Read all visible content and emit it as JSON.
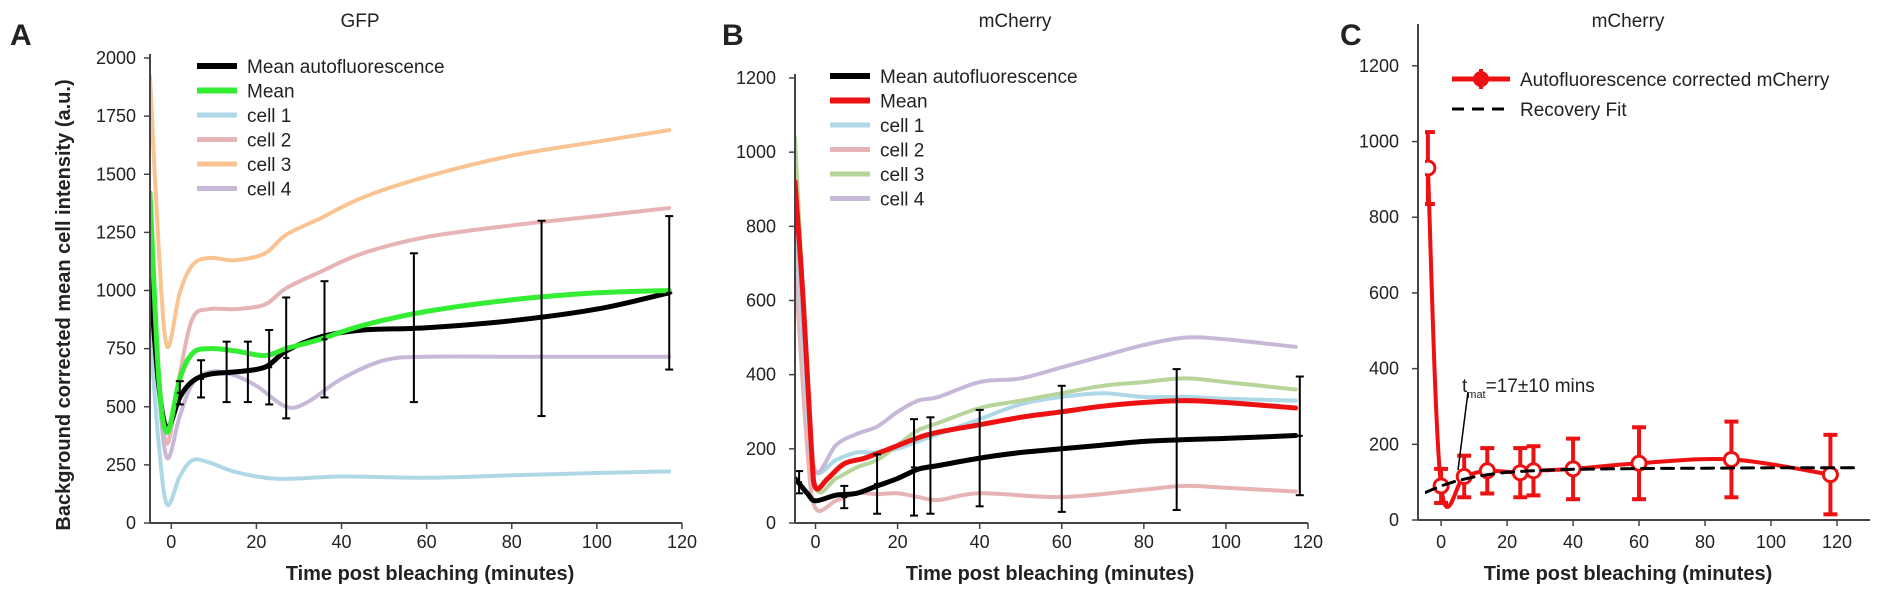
{
  "chart_data": [
    {
      "panel": "A",
      "type": "line",
      "title": "GFP",
      "xlabel": "Time post bleaching (minutes)",
      "ylabel": "Background corrected mean cell intensity (a.u.)",
      "xlim": [
        -5,
        120
      ],
      "ylim": [
        0,
        2000
      ],
      "xticks": [
        0,
        20,
        40,
        60,
        80,
        100,
        120
      ],
      "yticks": [
        0,
        250,
        500,
        750,
        1000,
        1250,
        1500,
        1750,
        2000
      ],
      "legend_position": "top-left",
      "series": [
        {
          "name": "cell 1",
          "color": "#aed8e6",
          "width": 4,
          "x": [
            -5,
            -3,
            -1,
            2,
            5,
            9,
            15,
            25,
            40,
            60,
            80,
            100,
            117
          ],
          "y": [
            820,
            350,
            80,
            200,
            270,
            260,
            220,
            190,
            200,
            195,
            205,
            215,
            222
          ]
        },
        {
          "name": "cell 2",
          "color": "#e6b4b4",
          "width": 4,
          "x": [
            -5,
            -3,
            -1,
            2,
            5,
            9,
            15,
            22,
            27,
            35,
            45,
            60,
            80,
            100,
            117
          ],
          "y": [
            1100,
            650,
            340,
            640,
            880,
            920,
            920,
            940,
            1010,
            1080,
            1160,
            1230,
            1280,
            1320,
            1355
          ]
        },
        {
          "name": "cell 3",
          "color": "#f9c392",
          "width": 4,
          "x": [
            -5,
            -3,
            -1,
            2,
            5,
            9,
            15,
            22,
            27,
            35,
            45,
            60,
            80,
            100,
            117
          ],
          "y": [
            1920,
            1200,
            760,
            990,
            1110,
            1140,
            1130,
            1160,
            1240,
            1310,
            1400,
            1490,
            1580,
            1640,
            1690
          ]
        },
        {
          "name": "cell 4",
          "color": "#c7b8d8",
          "width": 4,
          "x": [
            -5,
            -3,
            -1,
            2,
            5,
            9,
            14,
            20,
            27,
            32,
            40,
            50,
            60,
            80,
            100,
            117
          ],
          "y": [
            1220,
            600,
            280,
            460,
            600,
            650,
            640,
            590,
            500,
            520,
            620,
            700,
            715,
            715,
            715,
            715
          ]
        },
        {
          "name": "Mean autofluorescence",
          "color": "#000000",
          "width": 5,
          "x": [
            -5,
            -3,
            -1,
            2,
            5,
            9,
            15,
            22,
            27,
            35,
            45,
            60,
            80,
            100,
            117
          ],
          "y": [
            1050,
            600,
            410,
            540,
            610,
            640,
            650,
            670,
            740,
            800,
            830,
            840,
            870,
            920,
            990
          ]
        },
        {
          "name": "Mean",
          "color": "#33ee33",
          "width": 5,
          "x": [
            -5,
            -3,
            -1,
            2,
            5,
            9,
            15,
            22,
            27,
            35,
            45,
            60,
            80,
            100,
            117
          ],
          "y": [
            1420,
            640,
            390,
            620,
            730,
            750,
            740,
            720,
            750,
            790,
            850,
            910,
            960,
            990,
            1000
          ]
        }
      ],
      "errorbars": {
        "color": "#000000",
        "x": [
          2,
          7,
          13,
          18,
          23,
          27,
          36,
          57,
          87,
          117
        ],
        "y": [
          560,
          620,
          650,
          650,
          670,
          710,
          790,
          840,
          880,
          990
        ],
        "err": [
          50,
          80,
          130,
          130,
          160,
          260,
          250,
          320,
          420,
          330
        ]
      },
      "legend": [
        "Mean autofluorescence",
        "Mean",
        "cell 1",
        "cell 2",
        "cell 3",
        "cell 4"
      ]
    },
    {
      "panel": "B",
      "type": "line",
      "title": "mCherry",
      "xlabel": "Time post bleaching (minutes)",
      "ylabel": "",
      "xlim": [
        -5,
        120
      ],
      "ylim": [
        0,
        1200
      ],
      "xticks": [
        0,
        20,
        40,
        60,
        80,
        100,
        120
      ],
      "yticks": [
        0,
        200,
        400,
        600,
        800,
        1000,
        1200
      ],
      "legend_position": "top-left",
      "series": [
        {
          "name": "cell 2",
          "color": "#e6b4b4",
          "width": 4,
          "x": [
            -5,
            -2,
            0,
            5,
            10,
            15,
            20,
            25,
            30,
            40,
            60,
            80,
            90,
            100,
            117
          ],
          "y": [
            700,
            200,
            40,
            60,
            80,
            78,
            80,
            70,
            62,
            80,
            70,
            90,
            100,
            95,
            85
          ]
        },
        {
          "name": "cell 1",
          "color": "#aed8e6",
          "width": 4,
          "x": [
            -5,
            -2,
            0,
            5,
            10,
            15,
            20,
            25,
            30,
            40,
            50,
            60,
            70,
            80,
            90,
            100,
            117
          ],
          "y": [
            830,
            300,
            140,
            170,
            190,
            190,
            200,
            220,
            240,
            280,
            320,
            340,
            350,
            340,
            340,
            335,
            330
          ]
        },
        {
          "name": "cell 3",
          "color": "#b7d49a",
          "width": 4,
          "x": [
            -5,
            -2,
            0,
            5,
            10,
            15,
            20,
            25,
            30,
            40,
            50,
            60,
            70,
            80,
            90,
            100,
            117
          ],
          "y": [
            1040,
            400,
            100,
            120,
            150,
            170,
            210,
            250,
            270,
            310,
            330,
            350,
            370,
            380,
            390,
            380,
            360
          ]
        },
        {
          "name": "cell 4",
          "color": "#c7b8d8",
          "width": 4,
          "x": [
            -5,
            -2,
            0,
            5,
            10,
            15,
            20,
            25,
            30,
            40,
            50,
            60,
            70,
            80,
            90,
            100,
            117
          ],
          "y": [
            920,
            350,
            140,
            210,
            240,
            260,
            300,
            330,
            340,
            380,
            390,
            420,
            450,
            480,
            500,
            495,
            475
          ]
        },
        {
          "name": "Mean autofluorescence",
          "color": "#000000",
          "width": 5,
          "x": [
            -5,
            -2,
            0,
            5,
            10,
            15,
            20,
            25,
            30,
            40,
            50,
            60,
            70,
            80,
            90,
            100,
            117
          ],
          "y": [
            120,
            80,
            60,
            75,
            80,
            100,
            120,
            145,
            155,
            175,
            190,
            200,
            210,
            220,
            225,
            228,
            236
          ]
        },
        {
          "name": "Mean",
          "color": "#ee1111",
          "width": 5,
          "x": [
            -5,
            -3,
            -1,
            0,
            3,
            7,
            12,
            18,
            25,
            30,
            40,
            50,
            60,
            70,
            80,
            90,
            100,
            117
          ],
          "y": [
            920,
            600,
            200,
            95,
            120,
            160,
            175,
            200,
            230,
            245,
            265,
            285,
            300,
            315,
            325,
            330,
            325,
            310
          ]
        }
      ],
      "errorbars": {
        "color": "#000000",
        "x": [
          -4,
          7,
          15,
          24,
          28,
          40,
          60,
          88,
          118
        ],
        "y": [
          110,
          70,
          105,
          150,
          155,
          175,
          200,
          225,
          235
        ],
        "err": [
          30,
          30,
          80,
          130,
          130,
          130,
          170,
          190,
          160
        ]
      },
      "legend": [
        "Mean autofluorescence",
        "Mean",
        "cell 1",
        "cell 2",
        "cell 3",
        "cell 4"
      ]
    },
    {
      "panel": "C",
      "type": "line",
      "title": "mCherry",
      "xlabel": "Time post bleaching (minutes)",
      "ylabel": "",
      "xlim": [
        -7,
        130
      ],
      "ylim": [
        0,
        1300
      ],
      "xticks": [
        0,
        20,
        40,
        60,
        80,
        100,
        120
      ],
      "yticks": [
        0,
        200,
        400,
        600,
        800,
        1000,
        1200
      ],
      "legend_position": "top-right",
      "series": [
        {
          "name": "Autofluorescence corrected mCherry",
          "color": "#ee1111",
          "width": 4,
          "x": [
            -4,
            0,
            7,
            14,
            24,
            28,
            40,
            60,
            88,
            118
          ],
          "y": [
            930,
            90,
            115,
            130,
            125,
            130,
            135,
            150,
            160,
            120
          ],
          "err": [
            95,
            45,
            55,
            60,
            65,
            65,
            80,
            95,
            100,
            105
          ]
        },
        {
          "name": "Recovery Fit",
          "color": "#000000",
          "width": 3,
          "dashed": true,
          "x": [
            -5,
            0,
            5,
            10,
            15,
            20,
            25,
            30,
            40,
            60,
            80,
            100,
            125
          ],
          "y": [
            72,
            90,
            104,
            114,
            121,
            126,
            129,
            131,
            134,
            136,
            137,
            138,
            138
          ]
        }
      ],
      "annotation": {
        "main": "t",
        "sub": "mat",
        "rest": "=17±10 mins"
      },
      "legend": [
        "Autofluorescence corrected mCherry",
        "Recovery Fit"
      ]
    }
  ]
}
